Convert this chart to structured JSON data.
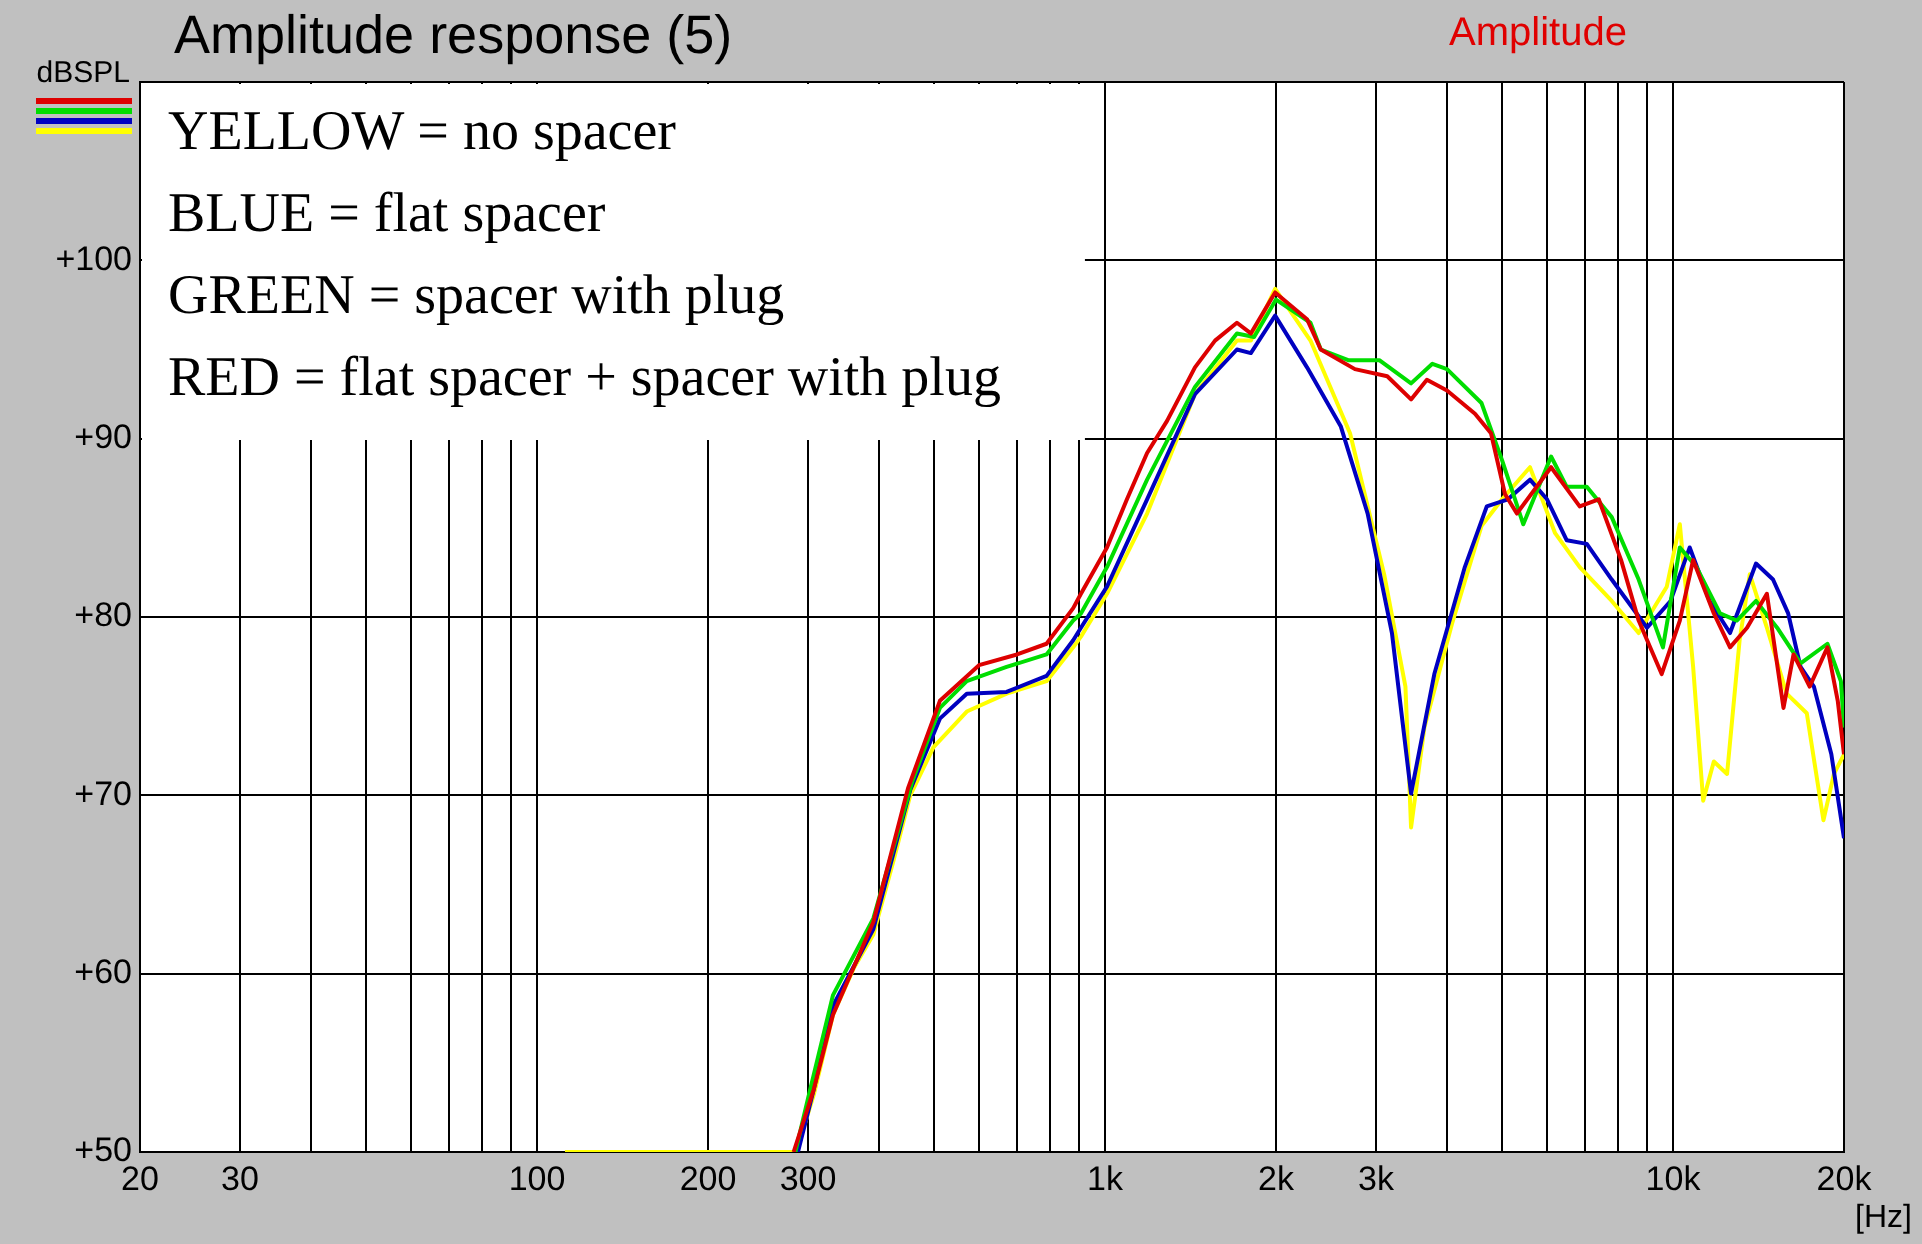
{
  "chart_data": {
    "type": "line",
    "title": "Amplitude response (5)",
    "subtitle": "Amplitude",
    "xlabel": "[Hz]",
    "ylabel": "dBSPL",
    "annotations": [
      "YELLOW = no spacer",
      "BLUE = flat spacer",
      "GREEN = spacer with plug",
      "RED = flat spacer + spacer with plug"
    ],
    "log": "x",
    "grid": true,
    "legend": false,
    "xlim": [
      20,
      20000
    ],
    "xticks": [
      {
        "value": 20,
        "label": "20"
      },
      {
        "value": 30,
        "label": "30"
      },
      {
        "value": 40,
        "label": null
      },
      {
        "value": 50,
        "label": null
      },
      {
        "value": 60,
        "label": null
      },
      {
        "value": 70,
        "label": null
      },
      {
        "value": 80,
        "label": null
      },
      {
        "value": 90,
        "label": null
      },
      {
        "value": 100,
        "label": "100"
      },
      {
        "value": 200,
        "label": "200"
      },
      {
        "value": 300,
        "label": "300"
      },
      {
        "value": 400,
        "label": null
      },
      {
        "value": 500,
        "label": null
      },
      {
        "value": 600,
        "label": null
      },
      {
        "value": 700,
        "label": null
      },
      {
        "value": 800,
        "label": null
      },
      {
        "value": 900,
        "label": null
      },
      {
        "value": 1000,
        "label": "1k"
      },
      {
        "value": 2000,
        "label": "2k"
      },
      {
        "value": 3000,
        "label": "3k"
      },
      {
        "value": 4000,
        "label": null
      },
      {
        "value": 5000,
        "label": null
      },
      {
        "value": 6000,
        "label": null
      },
      {
        "value": 7000,
        "label": null
      },
      {
        "value": 8000,
        "label": null
      },
      {
        "value": 9000,
        "label": null
      },
      {
        "value": 10000,
        "label": "10k"
      },
      {
        "value": 20000,
        "label": "20k"
      }
    ],
    "ylim": [
      50,
      110
    ],
    "yticks": [
      {
        "value": 50,
        "label": "+50"
      },
      {
        "value": 60,
        "label": "+60"
      },
      {
        "value": 70,
        "label": "+70"
      },
      {
        "value": 80,
        "label": "+80"
      },
      {
        "value": 90,
        "label": "+90"
      },
      {
        "value": 100,
        "label": "+100"
      },
      {
        "value": 110,
        "label": null
      }
    ],
    "series": [
      {
        "color": "#dd0000",
        "x": [
          283,
          307,
          332,
          391,
          450,
          512,
          600,
          700,
          789,
          879,
          907,
          1008,
          1093,
          1186,
          1286,
          1440,
          1562,
          1707,
          1806,
          1993,
          2268,
          2398,
          2754,
          3140,
          3458,
          3687,
          4000,
          4481,
          4781,
          5060,
          5310,
          6100,
          6850,
          7400,
          8100,
          8700,
          9550,
          10280,
          10850,
          11800,
          12600,
          13500,
          14630,
          15650,
          16300,
          17400,
          18700,
          19500,
          20000
        ],
        "values": [
          50,
          53.5,
          57.7,
          62.9,
          70.4,
          75.3,
          77.3,
          77.9,
          78.5,
          80.5,
          81.3,
          83.9,
          86.6,
          89.2,
          91,
          94,
          95.5,
          96.5,
          95.9,
          98.2,
          96.7,
          95,
          93.9,
          93.5,
          92.2,
          93.3,
          92.7,
          91.4,
          90.3,
          86.9,
          85.8,
          88.4,
          86.2,
          86.6,
          83.2,
          79.8,
          76.8,
          79.8,
          83.2,
          80.2,
          78.3,
          79.4,
          81.3,
          74.9,
          77.9,
          76.1,
          78.3,
          75.3,
          72.3
        ]
      },
      {
        "color": "#00dd00",
        "x": [
          285,
          300,
          332,
          391,
          458,
          512,
          571,
          671,
          789,
          879,
          907,
          1008,
          1186,
          1440,
          1707,
          1830,
          2000,
          2300,
          2398,
          2680,
          3040,
          3458,
          3770,
          4000,
          4600,
          5000,
          5450,
          6100,
          6500,
          7050,
          7800,
          8700,
          9600,
          10280,
          11000,
          12100,
          12950,
          14000,
          15250,
          16770,
          18700,
          19750,
          20000
        ],
        "values": [
          50,
          53,
          58.8,
          63.1,
          70.8,
          74.9,
          76.4,
          77.2,
          77.9,
          79.8,
          80.2,
          82.8,
          87.7,
          92.9,
          95.9,
          95.7,
          97.8,
          96.5,
          95,
          94.4,
          94.4,
          93.1,
          94.2,
          93.9,
          92,
          88.8,
          85.2,
          89,
          87.3,
          87.3,
          85.6,
          82.1,
          78.3,
          83.9,
          82.8,
          80.2,
          79.8,
          80.9,
          79.4,
          77.4,
          78.5,
          76.4,
          73.8
        ]
      },
      {
        "color": "#0000c0",
        "x": [
          288,
          307,
          332,
          391,
          454,
          512,
          571,
          671,
          789,
          879,
          907,
          1008,
          1186,
          1440,
          1707,
          1806,
          1993,
          2268,
          2600,
          2900,
          3200,
          3458,
          3800,
          4300,
          4700,
          5120,
          5600,
          6000,
          6500,
          7050,
          7800,
          9000,
          9900,
          10700,
          11600,
          12600,
          14000,
          15000,
          15950,
          16770,
          17700,
          19000,
          20000
        ],
        "values": [
          50,
          53.5,
          58.2,
          62.5,
          70.3,
          74.3,
          75.7,
          75.8,
          76.7,
          78.7,
          79.4,
          81.7,
          86.6,
          92.5,
          95,
          94.8,
          96.9,
          94,
          90.7,
          85.8,
          79.1,
          70.1,
          76.8,
          82.8,
          86.2,
          86.6,
          87.7,
          86.6,
          84.3,
          84.1,
          82.1,
          79.4,
          80.9,
          83.9,
          80.9,
          79.1,
          83,
          82.1,
          80.2,
          77.2,
          76.1,
          72.3,
          67.6
        ]
      },
      {
        "color": "#ffff00",
        "x": [
          112,
          286,
          307,
          332,
          361,
          391,
          424,
          454,
          499,
          571,
          671,
          789,
          879,
          907,
          1008,
          1186,
          1440,
          1707,
          1806,
          1993,
          2300,
          2700,
          3100,
          3380,
          3458,
          3650,
          4080,
          4600,
          5000,
          5600,
          6200,
          6850,
          7800,
          8700,
          9750,
          10280,
          10850,
          11300,
          11800,
          12450,
          13100,
          13650,
          14630,
          15850,
          17200,
          18400,
          19200,
          20000
        ],
        "values": [
          50,
          50,
          53.2,
          57.7,
          60.3,
          62.2,
          66.3,
          70,
          72.7,
          74.7,
          75.7,
          76.4,
          78.3,
          78.9,
          81.3,
          85.8,
          92.5,
          95.5,
          95.5,
          98.4,
          95.5,
          90.3,
          82.4,
          76.1,
          68.2,
          73.8,
          79.6,
          85.1,
          86.6,
          88.4,
          84.7,
          82.8,
          80.9,
          79.1,
          81.7,
          85.2,
          77.2,
          69.7,
          71.9,
          71.2,
          78.7,
          82.4,
          79.4,
          75.7,
          74.6,
          68.6,
          71.2,
          72.3
        ]
      }
    ]
  }
}
